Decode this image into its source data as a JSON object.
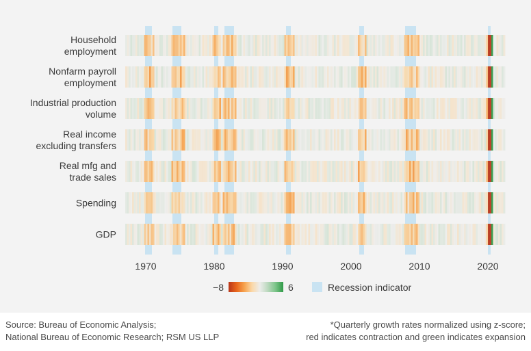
{
  "chart_data": {
    "type": "heatmap",
    "title": "",
    "rows": [
      [
        "Household",
        "employment"
      ],
      [
        "Nonfarm payroll",
        "employment"
      ],
      [
        "Industrial production",
        "volume"
      ],
      [
        "Real income",
        "excluding transfers"
      ],
      [
        "Real mfg and",
        "trade sales"
      ],
      [
        "Spending"
      ],
      [
        "GDP"
      ]
    ],
    "x_ticks": [
      1970,
      1980,
      1990,
      2000,
      2010,
      2020
    ],
    "x_range": [
      1967,
      2022.5
    ],
    "color_scale": {
      "min": -8,
      "max": 6,
      "min_label": "−8",
      "max_label": "6",
      "stops": [
        "#b8361a",
        "#e8651c",
        "#f6a24d",
        "#fbd8a8",
        "#ececea",
        "#bcd9bf",
        "#7cc489",
        "#2f9a47"
      ]
    },
    "recessions": [
      [
        1969.9,
        1970.9
      ],
      [
        1973.9,
        1975.2
      ],
      [
        1980.0,
        1980.6
      ],
      [
        1981.5,
        1982.9
      ],
      [
        1990.5,
        1991.2
      ],
      [
        2001.2,
        2001.9
      ],
      [
        2007.9,
        2009.5
      ],
      [
        2020.0,
        2020.4
      ]
    ],
    "legend": {
      "recession_label": "Recession indicator",
      "recession_color": "#c9e3f2"
    },
    "series_values_description": "Quarterly z-scores 1967-2022 per row"
  },
  "footer": {
    "source_line1": "Source: Bureau of Economic Analysis;",
    "source_line2": "National Bureau of Economic Research; RSM US LLP",
    "note_line1": "*Quarterly growth rates normalized using z-score;",
    "note_line2": "red indicates contraction and green indicates expansion"
  }
}
